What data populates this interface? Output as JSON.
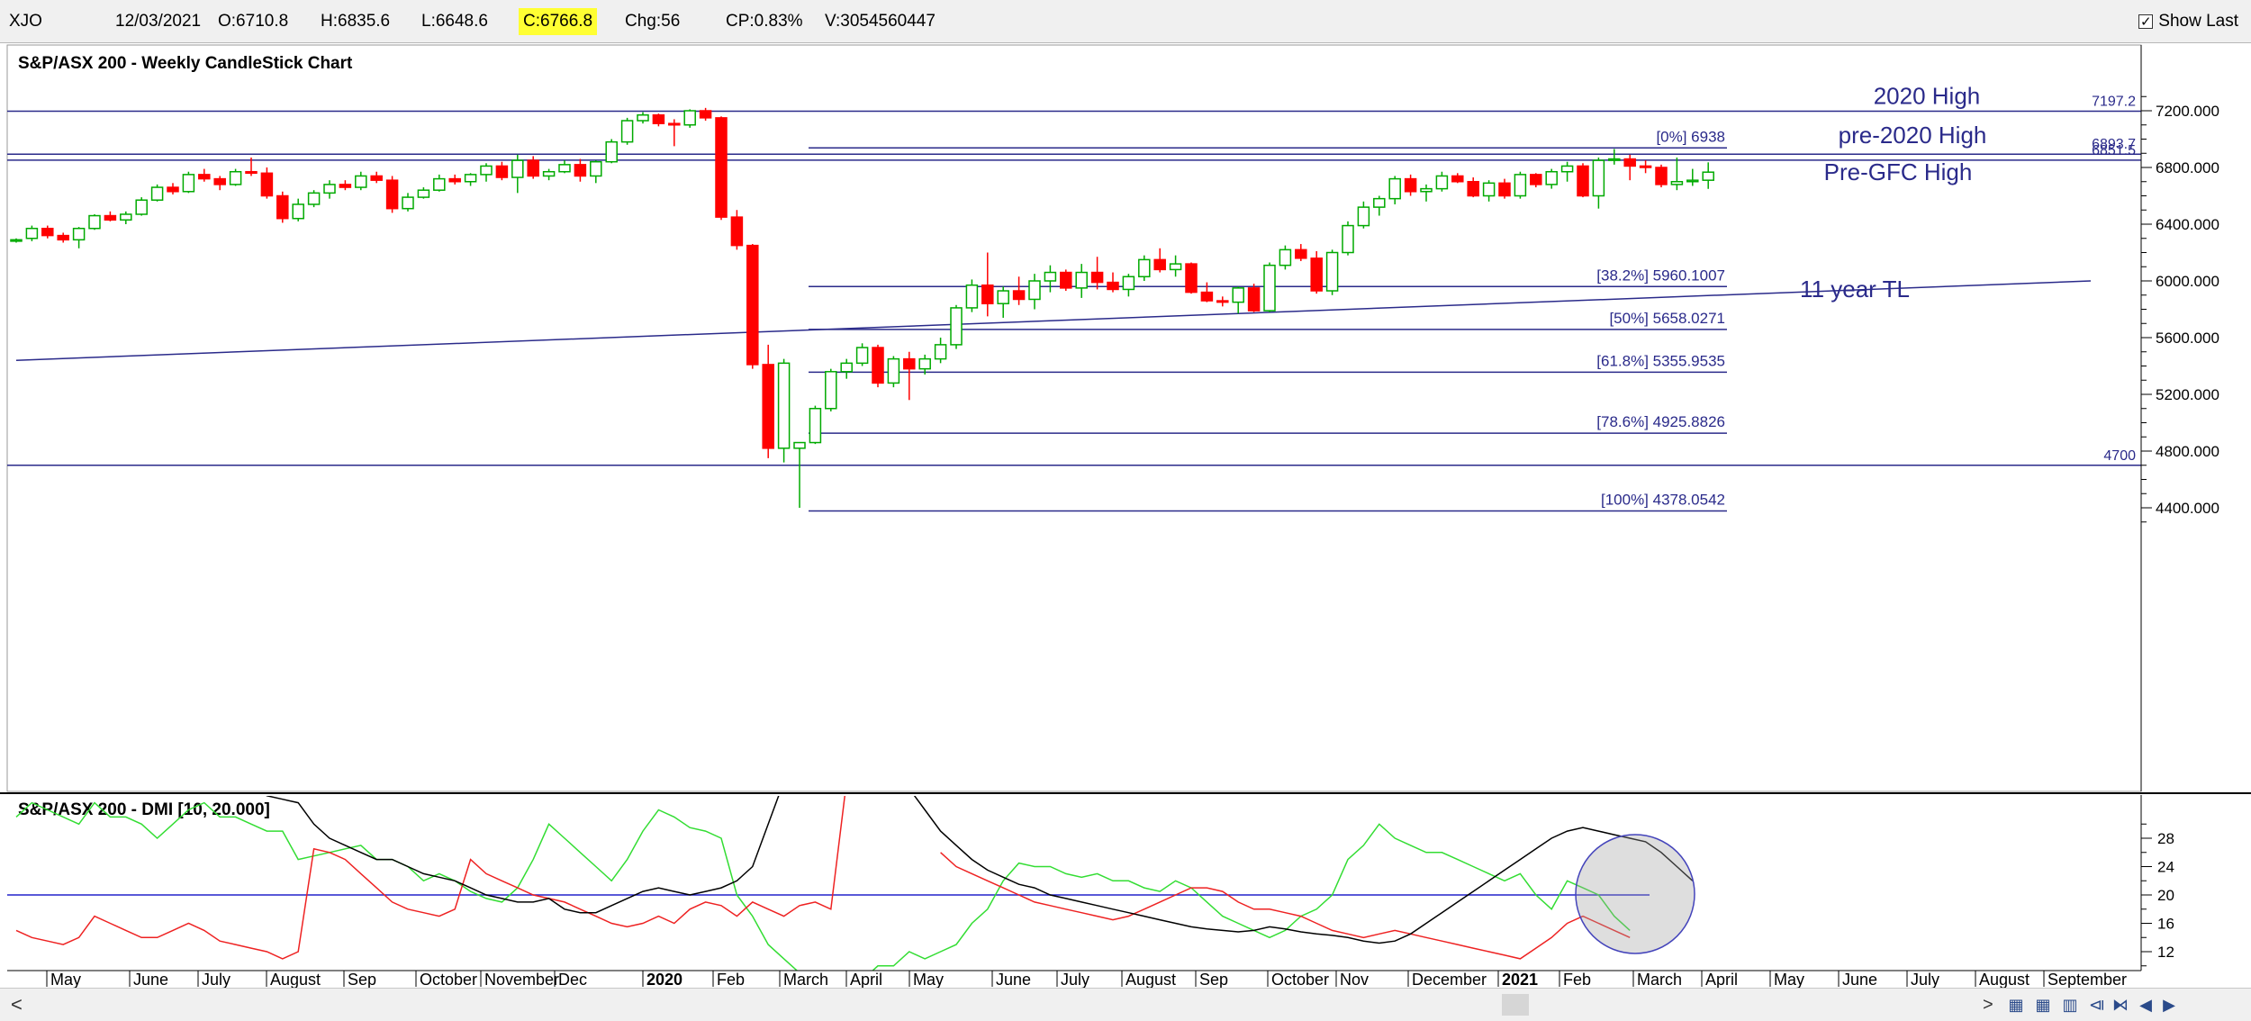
{
  "toolbar": {
    "symbol": "XJO",
    "date": "12/03/2021",
    "open": "O:6710.8",
    "high": "H:6835.6",
    "low": "L:6648.6",
    "close": "C:6766.8",
    "change": "Chg:56",
    "change_pct": "CP:0.83%",
    "volume": "V:3054560447",
    "show_last_label": "Show Last",
    "show_last_checked": true
  },
  "scroll": {
    "left_arrow": "<",
    "right_arrow": ">"
  },
  "colors": {
    "up_candle": "#00aa00",
    "down_candle": "#ff0000",
    "guide_lines": "#2a2a8a",
    "dmi_plus": "#33dd33",
    "dmi_minus": "#ee2222",
    "adx": "#000000"
  },
  "chart_data": [
    {
      "type": "candlestick",
      "title": "S&P/ASX 200 - Weekly CandleStick Chart",
      "ylim": [
        4200,
        7350
      ],
      "y_ticks": [
        "7200.000",
        "6800.000",
        "6400.000",
        "6000.000",
        "5600.000",
        "5200.000",
        "4800.000",
        "4400.000"
      ],
      "x_labels": [
        "May",
        "June",
        "July",
        "August",
        "Sep",
        "October",
        "November",
        "Dec",
        "2020",
        "Feb",
        "March",
        "April",
        "May",
        "June",
        "July",
        "August",
        "Sep",
        "October",
        "Nov",
        "December",
        "2021",
        "Feb",
        "March",
        "April",
        "May",
        "June",
        "July",
        "August",
        "September"
      ],
      "candles": [
        [
          6280,
          6300,
          6270,
          6290
        ],
        [
          6300,
          6390,
          6280,
          6370
        ],
        [
          6370,
          6390,
          6300,
          6320
        ],
        [
          6320,
          6340,
          6270,
          6290
        ],
        [
          6290,
          6380,
          6230,
          6370
        ],
        [
          6370,
          6470,
          6360,
          6460
        ],
        [
          6460,
          6490,
          6420,
          6430
        ],
        [
          6430,
          6490,
          6400,
          6470
        ],
        [
          6470,
          6590,
          6460,
          6570
        ],
        [
          6570,
          6680,
          6560,
          6660
        ],
        [
          6660,
          6690,
          6610,
          6630
        ],
        [
          6630,
          6770,
          6620,
          6750
        ],
        [
          6750,
          6790,
          6700,
          6720
        ],
        [
          6720,
          6740,
          6640,
          6680
        ],
        [
          6680,
          6790,
          6670,
          6770
        ],
        [
          6770,
          6870,
          6740,
          6760
        ],
        [
          6760,
          6800,
          6580,
          6600
        ],
        [
          6600,
          6630,
          6410,
          6440
        ],
        [
          6440,
          6580,
          6420,
          6540
        ],
        [
          6540,
          6640,
          6520,
          6620
        ],
        [
          6620,
          6710,
          6580,
          6680
        ],
        [
          6680,
          6710,
          6640,
          6660
        ],
        [
          6660,
          6770,
          6640,
          6740
        ],
        [
          6740,
          6770,
          6690,
          6710
        ],
        [
          6710,
          6740,
          6480,
          6510
        ],
        [
          6510,
          6620,
          6490,
          6590
        ],
        [
          6590,
          6660,
          6580,
          6640
        ],
        [
          6640,
          6750,
          6630,
          6720
        ],
        [
          6720,
          6750,
          6680,
          6700
        ],
        [
          6700,
          6760,
          6670,
          6750
        ],
        [
          6750,
          6830,
          6700,
          6810
        ],
        [
          6810,
          6840,
          6710,
          6730
        ],
        [
          6730,
          6890,
          6620,
          6850
        ],
        [
          6850,
          6880,
          6720,
          6740
        ],
        [
          6740,
          6790,
          6710,
          6770
        ],
        [
          6770,
          6850,
          6760,
          6820
        ],
        [
          6820,
          6860,
          6700,
          6740
        ],
        [
          6740,
          6850,
          6690,
          6840
        ],
        [
          6840,
          7000,
          6830,
          6980
        ],
        [
          6980,
          7150,
          6960,
          7130
        ],
        [
          7130,
          7190,
          7110,
          7170
        ],
        [
          7170,
          7180,
          7090,
          7110
        ],
        [
          7110,
          7140,
          6950,
          7100
        ],
        [
          7100,
          7210,
          7080,
          7200
        ],
        [
          7200,
          7220,
          7130,
          7150
        ],
        [
          7150,
          7160,
          6430,
          6450
        ],
        [
          6450,
          6500,
          6220,
          6250
        ],
        [
          6250,
          6260,
          5380,
          5410
        ],
        [
          5410,
          5550,
          4750,
          4820
        ],
        [
          4820,
          5450,
          4720,
          5420
        ],
        [
          4820,
          4830,
          4400,
          4860
        ],
        [
          4860,
          5120,
          4850,
          5100
        ],
        [
          5100,
          5380,
          5080,
          5360
        ],
        [
          5360,
          5450,
          5310,
          5420
        ],
        [
          5420,
          5560,
          5400,
          5530
        ],
        [
          5530,
          5550,
          5250,
          5280
        ],
        [
          5280,
          5470,
          5250,
          5450
        ],
        [
          5450,
          5500,
          5160,
          5380
        ],
        [
          5380,
          5480,
          5340,
          5450
        ],
        [
          5450,
          5600,
          5420,
          5550
        ],
        [
          5550,
          5830,
          5520,
          5810
        ],
        [
          5810,
          6010,
          5780,
          5970
        ],
        [
          5970,
          6200,
          5750,
          5840
        ],
        [
          5840,
          5960,
          5740,
          5930
        ],
        [
          5930,
          6030,
          5830,
          5870
        ],
        [
          5870,
          6050,
          5800,
          6000
        ],
        [
          6000,
          6110,
          5920,
          6060
        ],
        [
          6060,
          6080,
          5930,
          5950
        ],
        [
          5950,
          6120,
          5880,
          6060
        ],
        [
          6060,
          6170,
          5940,
          5990
        ],
        [
          5990,
          6060,
          5920,
          5940
        ],
        [
          5940,
          6050,
          5890,
          6030
        ],
        [
          6030,
          6180,
          6000,
          6150
        ],
        [
          6150,
          6230,
          6060,
          6080
        ],
        [
          6080,
          6180,
          6030,
          6120
        ],
        [
          6120,
          6130,
          5910,
          5920
        ],
        [
          5920,
          5990,
          5850,
          5860
        ],
        [
          5860,
          5890,
          5820,
          5850
        ],
        [
          5850,
          5960,
          5770,
          5950
        ],
        [
          5950,
          5980,
          5780,
          5790
        ],
        [
          5790,
          6130,
          5780,
          6110
        ],
        [
          6110,
          6250,
          6080,
          6220
        ],
        [
          6220,
          6260,
          6140,
          6160
        ],
        [
          6160,
          6210,
          5910,
          5930
        ],
        [
          5930,
          6220,
          5900,
          6200
        ],
        [
          6200,
          6420,
          6180,
          6390
        ],
        [
          6390,
          6560,
          6370,
          6520
        ],
        [
          6520,
          6600,
          6460,
          6580
        ],
        [
          6580,
          6740,
          6540,
          6720
        ],
        [
          6720,
          6750,
          6600,
          6630
        ],
        [
          6630,
          6680,
          6560,
          6650
        ],
        [
          6650,
          6770,
          6630,
          6740
        ],
        [
          6740,
          6760,
          6690,
          6700
        ],
        [
          6700,
          6730,
          6590,
          6600
        ],
        [
          6600,
          6710,
          6560,
          6690
        ],
        [
          6690,
          6720,
          6580,
          6600
        ],
        [
          6600,
          6770,
          6580,
          6750
        ],
        [
          6750,
          6760,
          6660,
          6680
        ],
        [
          6680,
          6790,
          6650,
          6770
        ],
        [
          6770,
          6840,
          6700,
          6810
        ],
        [
          6810,
          6830,
          6590,
          6600
        ],
        [
          6600,
          6870,
          6510,
          6850
        ],
        [
          6850,
          6930,
          6820,
          6860
        ],
        [
          6860,
          6890,
          6710,
          6810
        ],
        [
          6810,
          6850,
          6760,
          6800
        ],
        [
          6800,
          6820,
          6660,
          6680
        ],
        [
          6680,
          6870,
          6640,
          6700
        ],
        [
          6700,
          6790,
          6670,
          6710
        ],
        [
          6710,
          6836,
          6649,
          6767
        ]
      ],
      "levels": [
        {
          "label": "2020 High",
          "value": 7197.2,
          "price": "7197.2"
        },
        {
          "label": "pre-2020 High",
          "value": 6893.7,
          "price": "6893.7"
        },
        {
          "label": "Pre-GFC High",
          "value": 6851.5,
          "price": "6851.5"
        },
        {
          "label": "",
          "value": 4700,
          "price": "4700"
        }
      ],
      "fibonacci": [
        {
          "label": "[0%] 6938",
          "value": 6938
        },
        {
          "label": "[38.2%] 5960.1007",
          "value": 5960.1007
        },
        {
          "label": "[50%] 5658.0271",
          "value": 5658.0271
        },
        {
          "label": "[61.8%] 5355.9535",
          "value": 5355.9535
        },
        {
          "label": "[78.6%] 4925.8826",
          "value": 4925.8826
        },
        {
          "label": "[100%] 4378.0542",
          "value": 4378.0542
        }
      ],
      "trendline": {
        "label": "11 year TL",
        "start_value": 5440,
        "end_value": 6000
      }
    },
    {
      "type": "line",
      "title": "S&P/ASX 200 - DMI [10, 20.000]",
      "ylim": [
        9,
        34
      ],
      "y_ticks": [
        "28",
        "24",
        "20",
        "16",
        "12"
      ],
      "threshold": 20,
      "series": [
        {
          "key": "dmi_plus",
          "values": [
            31,
            33,
            32,
            31,
            30,
            33,
            31,
            31,
            30,
            28,
            30,
            32,
            33,
            31,
            31,
            30,
            29,
            29,
            25,
            25.5,
            26,
            26.5,
            27,
            25,
            25,
            24,
            22,
            23,
            22,
            20.5,
            19.5,
            19,
            21,
            25,
            30,
            28,
            26,
            24,
            22,
            25,
            29,
            32,
            31,
            29.5,
            29,
            28,
            20,
            17,
            13,
            11,
            9,
            7,
            4,
            7,
            8,
            10,
            10,
            12,
            11,
            12,
            13,
            16,
            18,
            22,
            24.5,
            24,
            24,
            23,
            22.5,
            23,
            22,
            22,
            21,
            20.5,
            22,
            21,
            19,
            17,
            16,
            15,
            14,
            15,
            17,
            18,
            20,
            25,
            27,
            30,
            28,
            27,
            26,
            26,
            25,
            24,
            23,
            22,
            23,
            20,
            18,
            22,
            21,
            20,
            17,
            15
          ],
          "slice_start": 0
        },
        {
          "key": "dmi_minus",
          "values": [
            15,
            14,
            13.5,
            13,
            14,
            17,
            16,
            15,
            14,
            14,
            15,
            16,
            15,
            13.5,
            13,
            12.5,
            12,
            11,
            12,
            26.5,
            26,
            25,
            23,
            21,
            19,
            18,
            17.5,
            17,
            18,
            25,
            23,
            22,
            21,
            20,
            19.5,
            19,
            18,
            17,
            16,
            15.5,
            16,
            17,
            16,
            18,
            19,
            18.5,
            17,
            19,
            18,
            17,
            18.5,
            19,
            18,
            36
          ],
          "slice_start": 0
        },
        {
          "key": "dmi_minus_b",
          "values": [
            26,
            24,
            23,
            22,
            21,
            20,
            19,
            18.5,
            18,
            17.5,
            17,
            16.5,
            17,
            18,
            19,
            20,
            21,
            21,
            20.5,
            19,
            18,
            18,
            17.5,
            17,
            16,
            15,
            14.5,
            14,
            14.5,
            15,
            14.5,
            14,
            13.5,
            13,
            12.5,
            12,
            11.5,
            11,
            12.5,
            14,
            16,
            17,
            16,
            15,
            14
          ],
          "slice_start": 59
        },
        {
          "key": "adx",
          "values": [
            38,
            36,
            35,
            35.5,
            34,
            33.5,
            33,
            30,
            28,
            27,
            26,
            25,
            25,
            24,
            23,
            22.5,
            22,
            21,
            20,
            19.5,
            19,
            19,
            19.5,
            18,
            17.5,
            17.5,
            18.5,
            19.5,
            20.5,
            21,
            20.5,
            20,
            20.5,
            21,
            22,
            24,
            30,
            36,
            42
          ],
          "slice_start": 12
        },
        {
          "key": "adx_b",
          "values": [
            38,
            35,
            32,
            29,
            27,
            25,
            23.5,
            22.5,
            21.5,
            21,
            20,
            19.5,
            19,
            18.5,
            18,
            17.5,
            17,
            16.5,
            16,
            15.5,
            15.2,
            15,
            14.8,
            15,
            15.5,
            15.2,
            14.8,
            14.5,
            14.3,
            14,
            13.5,
            13.2,
            13.5,
            14.5,
            16,
            17.5,
            19,
            20.5,
            22,
            23.5,
            25,
            26.5,
            28,
            29,
            29.5,
            29,
            28.5,
            28,
            27.5,
            26,
            24,
            22
          ],
          "slice_start": 56
        }
      ]
    }
  ]
}
